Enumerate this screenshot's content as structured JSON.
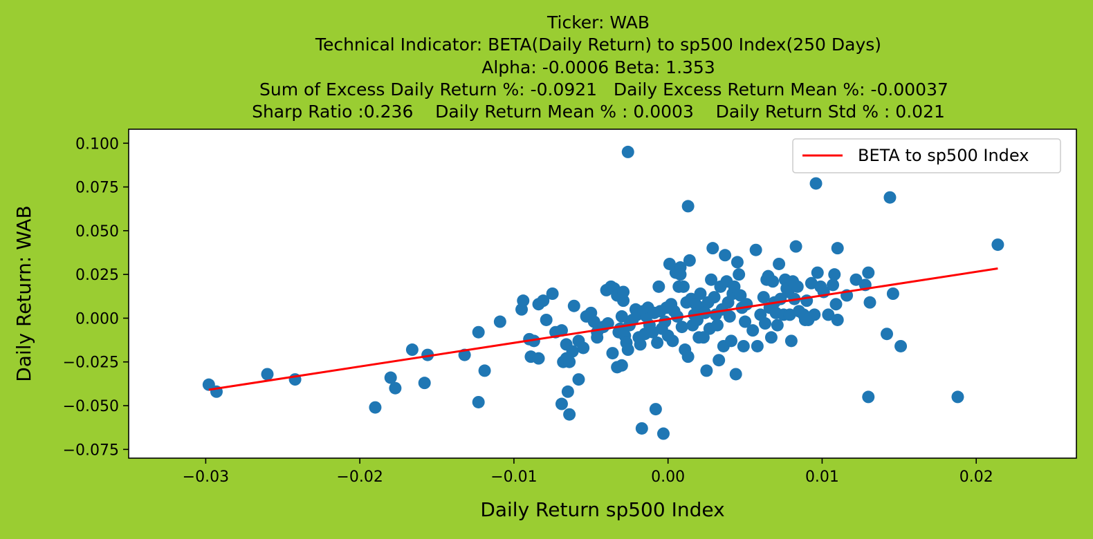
{
  "chart_data": {
    "type": "scatter",
    "title_lines": [
      "Ticker: WAB",
      "Technical Indicator: BETA(Daily Return) to sp500 Index(250 Days)",
      "Alpha: -0.0006   Beta: 1.353",
      "  Sum of Excess Daily Return %: -0.0921   Daily Excess Return Mean %: -0.00037",
      "Sharp Ratio :0.236    Daily Return Mean % : 0.0003    Daily Return Std % : 0.021"
    ],
    "xlabel": "Daily Return sp500 Index",
    "ylabel": "Daily Return: WAB",
    "xlim": [
      -0.035,
      0.0265
    ],
    "ylim": [
      -0.08,
      0.108
    ],
    "x_ticks": [
      -0.03,
      -0.02,
      -0.01,
      0.0,
      0.01,
      0.02
    ],
    "x_tick_labels": [
      "−0.03",
      "−0.02",
      "−0.01",
      "0.00",
      "0.01",
      "0.02"
    ],
    "y_ticks": [
      0.1,
      0.075,
      0.05,
      0.025,
      0.0,
      -0.025,
      -0.05,
      -0.075
    ],
    "y_tick_labels": [
      "0.100",
      "0.075",
      "0.050",
      "0.025",
      "0.000",
      "−0.025",
      "−0.050",
      "−0.075"
    ],
    "grid": false,
    "legend": {
      "position": "top-right",
      "entries": [
        "BETA to sp500 Index"
      ]
    },
    "series": [
      {
        "kind": "line",
        "name": "BETA to sp500 Index",
        "color": "#ff0000",
        "x": [
          -0.0298,
          0.0214
        ],
        "y": [
          -0.0409,
          0.0284
        ]
      },
      {
        "kind": "scatter",
        "color": "#1f77b4",
        "points": [
          [
            -0.0298,
            -0.038
          ],
          [
            -0.0293,
            -0.042
          ],
          [
            -0.026,
            -0.032
          ],
          [
            -0.0242,
            -0.035
          ],
          [
            -0.019,
            -0.051
          ],
          [
            -0.018,
            -0.034
          ],
          [
            -0.0177,
            -0.04
          ],
          [
            -0.0166,
            -0.018
          ],
          [
            -0.0158,
            -0.037
          ],
          [
            -0.0156,
            -0.021
          ],
          [
            -0.0132,
            -0.021
          ],
          [
            -0.0123,
            -0.008
          ],
          [
            -0.0123,
            -0.048
          ],
          [
            -0.0119,
            -0.03
          ],
          [
            -0.0109,
            -0.002
          ],
          [
            -0.0095,
            0.005
          ],
          [
            -0.0094,
            0.01
          ],
          [
            -0.009,
            -0.012
          ],
          [
            -0.0089,
            -0.022
          ],
          [
            -0.0087,
            -0.013
          ],
          [
            -0.0084,
            -0.023
          ],
          [
            -0.0084,
            0.008
          ],
          [
            -0.0081,
            0.01
          ],
          [
            -0.0079,
            -0.001
          ],
          [
            -0.0075,
            0.014
          ],
          [
            -0.0073,
            -0.008
          ],
          [
            -0.0069,
            -0.007
          ],
          [
            -0.0069,
            -0.049
          ],
          [
            -0.0068,
            -0.025
          ],
          [
            -0.0066,
            -0.023
          ],
          [
            -0.0066,
            -0.015
          ],
          [
            -0.0065,
            -0.042
          ],
          [
            -0.0064,
            -0.055
          ],
          [
            -0.0064,
            -0.025
          ],
          [
            -0.0062,
            -0.019
          ],
          [
            -0.0061,
            0.007
          ],
          [
            -0.0058,
            -0.013
          ],
          [
            -0.0058,
            -0.035
          ],
          [
            -0.0055,
            -0.017
          ],
          [
            -0.0053,
            0.001
          ],
          [
            -0.005,
            0.003
          ],
          [
            -0.0048,
            -0.002
          ],
          [
            -0.0046,
            -0.008
          ],
          [
            -0.0046,
            -0.011
          ],
          [
            -0.0042,
            -0.005
          ],
          [
            -0.004,
            0.016
          ],
          [
            -0.0039,
            -0.003
          ],
          [
            -0.0037,
            0.018
          ],
          [
            -0.0036,
            -0.02
          ],
          [
            -0.0035,
            0.017
          ],
          [
            -0.0033,
            0.013
          ],
          [
            -0.0033,
            -0.028
          ],
          [
            -0.0032,
            -0.008
          ],
          [
            -0.0031,
            -0.006
          ],
          [
            -0.003,
            0.001
          ],
          [
            -0.003,
            -0.027
          ],
          [
            -0.0029,
            0.01
          ],
          [
            -0.0029,
            0.015
          ],
          [
            -0.0028,
            -0.01
          ],
          [
            -0.0027,
            -0.014
          ],
          [
            -0.0026,
            -0.018
          ],
          [
            -0.0026,
            0.095
          ],
          [
            -0.0025,
            -0.004
          ],
          [
            -0.0023,
            -0.001
          ],
          [
            -0.0021,
            0.005
          ],
          [
            -0.002,
            0.002
          ],
          [
            -0.0019,
            -0.011
          ],
          [
            -0.0018,
            -0.015
          ],
          [
            -0.0017,
            -0.063
          ],
          [
            -0.0016,
            0.004
          ],
          [
            -0.0015,
            -0.009
          ],
          [
            -0.0014,
            0.001
          ],
          [
            -0.0013,
            0.006
          ],
          [
            -0.0012,
            -0.004
          ],
          [
            -0.001,
            -0.008
          ],
          [
            -0.0009,
            0.003
          ],
          [
            -0.0008,
            -0.052
          ],
          [
            -0.0007,
            -0.014
          ],
          [
            -0.0006,
            0.018
          ],
          [
            -0.0005,
            0.004
          ],
          [
            -0.0004,
            -0.006
          ],
          [
            -0.0003,
            -0.066
          ],
          [
            -0.0002,
            -0.002
          ],
          [
            -0.0001,
            0.006
          ],
          [
            0.0,
            -0.01
          ],
          [
            0.0001,
            0.031
          ],
          [
            0.0002,
            0.008
          ],
          [
            0.0003,
            -0.013
          ],
          [
            0.0004,
            0.004
          ],
          [
            0.0005,
            0.026
          ],
          [
            0.0006,
            0.001
          ],
          [
            0.0007,
            0.018
          ],
          [
            0.0008,
            0.029
          ],
          [
            0.0008,
            0.025
          ],
          [
            0.0009,
            -0.005
          ],
          [
            0.001,
            0.018
          ],
          [
            0.0011,
            -0.018
          ],
          [
            0.0012,
            0.009
          ],
          [
            0.0013,
            -0.022
          ],
          [
            0.0013,
            0.064
          ],
          [
            0.0014,
            0.033
          ],
          [
            0.0015,
            0.011
          ],
          [
            0.0016,
            -0.004
          ],
          [
            0.0017,
            0.002
          ],
          [
            0.0018,
            0.008
          ],
          [
            0.0019,
            -0.001
          ],
          [
            0.002,
            -0.011
          ],
          [
            0.0021,
            0.014
          ],
          [
            0.0022,
            0.006
          ],
          [
            0.0023,
            -0.011
          ],
          [
            0.0024,
            0.003
          ],
          [
            0.0025,
            -0.03
          ],
          [
            0.0026,
            0.009
          ],
          [
            0.0027,
            -0.006
          ],
          [
            0.0028,
            0.022
          ],
          [
            0.0029,
            0.04
          ],
          [
            0.003,
            0.012
          ],
          [
            0.0031,
            0.002
          ],
          [
            0.0032,
            -0.004
          ],
          [
            0.0033,
            -0.024
          ],
          [
            0.0034,
            0.018
          ],
          [
            0.0035,
            0.005
          ],
          [
            0.0036,
            -0.016
          ],
          [
            0.0037,
            0.036
          ],
          [
            0.0038,
            0.021
          ],
          [
            0.0039,
            0.009
          ],
          [
            0.004,
            0.001
          ],
          [
            0.0041,
            -0.013
          ],
          [
            0.0042,
            0.014
          ],
          [
            0.0043,
            0.018
          ],
          [
            0.0044,
            -0.032
          ],
          [
            0.0045,
            0.032
          ],
          [
            0.0046,
            0.025
          ],
          [
            0.0047,
            0.013
          ],
          [
            0.0048,
            0.006
          ],
          [
            0.0049,
            -0.016
          ],
          [
            0.005,
            -0.002
          ],
          [
            0.0051,
            0.008
          ],
          [
            0.0055,
            -0.007
          ],
          [
            0.0057,
            0.039
          ],
          [
            0.0058,
            -0.016
          ],
          [
            0.006,
            0.002
          ],
          [
            0.0062,
            0.012
          ],
          [
            0.0063,
            -0.003
          ],
          [
            0.0064,
            0.022
          ],
          [
            0.0065,
            0.024
          ],
          [
            0.0066,
            0.006
          ],
          [
            0.0067,
            -0.011
          ],
          [
            0.0068,
            0.021
          ],
          [
            0.0069,
            0.009
          ],
          [
            0.007,
            0.003
          ],
          [
            0.0071,
            -0.004
          ],
          [
            0.0072,
            0.031
          ],
          [
            0.0073,
            0.011
          ],
          [
            0.0075,
            0.002
          ],
          [
            0.0076,
            0.022
          ],
          [
            0.0077,
            0.017
          ],
          [
            0.0078,
            0.015
          ],
          [
            0.0079,
            0.002
          ],
          [
            0.008,
            -0.013
          ],
          [
            0.0081,
            0.021
          ],
          [
            0.0082,
            0.011
          ],
          [
            0.0083,
            0.041
          ],
          [
            0.0084,
            0.018
          ],
          [
            0.0085,
            0.004
          ],
          [
            0.0088,
            0.002
          ],
          [
            0.0089,
            -0.001
          ],
          [
            0.009,
            0.01
          ],
          [
            0.0091,
            -0.001
          ],
          [
            0.0093,
            0.02
          ],
          [
            0.0095,
            0.002
          ],
          [
            0.0096,
            0.077
          ],
          [
            0.0097,
            0.026
          ],
          [
            0.0099,
            0.018
          ],
          [
            0.0101,
            0.015
          ],
          [
            0.0104,
            0.002
          ],
          [
            0.0107,
            0.019
          ],
          [
            0.0108,
            0.025
          ],
          [
            0.0109,
            0.008
          ],
          [
            0.011,
            -0.001
          ],
          [
            0.011,
            0.04
          ],
          [
            0.0116,
            0.013
          ],
          [
            0.0122,
            0.022
          ],
          [
            0.0128,
            0.019
          ],
          [
            0.013,
            0.026
          ],
          [
            0.013,
            -0.045
          ],
          [
            0.0131,
            0.009
          ],
          [
            0.0142,
            -0.009
          ],
          [
            0.0144,
            0.069
          ],
          [
            0.0146,
            0.014
          ],
          [
            0.0151,
            -0.016
          ],
          [
            0.0188,
            -0.045
          ],
          [
            0.0214,
            0.042
          ]
        ]
      }
    ]
  }
}
